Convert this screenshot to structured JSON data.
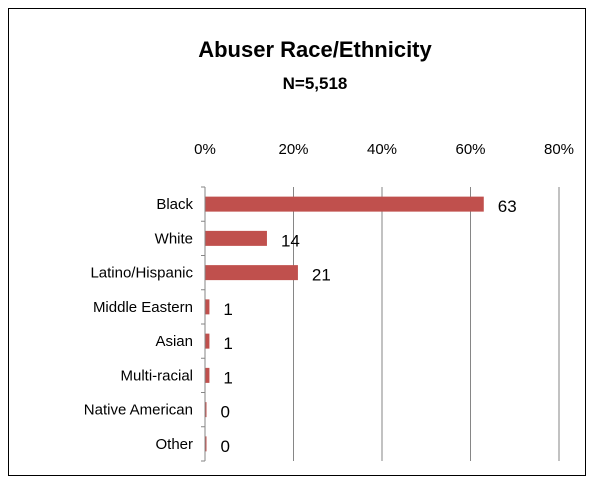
{
  "chart_data": {
    "type": "bar",
    "orientation": "horizontal",
    "title": "Abuser Race/Ethnicity",
    "subtitle": "N=5,518",
    "categories": [
      "Black",
      "White",
      "Latino/Hispanic",
      "Middle Eastern",
      "Asian",
      "Multi-racial",
      "Native American",
      "Other"
    ],
    "values": [
      63,
      14,
      21,
      1,
      1,
      1,
      0,
      0
    ],
    "data_labels": [
      "63",
      "14",
      "21",
      "1",
      "1",
      "1",
      "0",
      "0"
    ],
    "xlim": [
      0,
      80
    ],
    "x_ticks": [
      "0%",
      "20%",
      "40%",
      "60%",
      "80%"
    ],
    "x_axis_position": "top",
    "grid": true,
    "legend": "none",
    "bar_color": "#c0504d",
    "gridline_color": "#868686"
  }
}
